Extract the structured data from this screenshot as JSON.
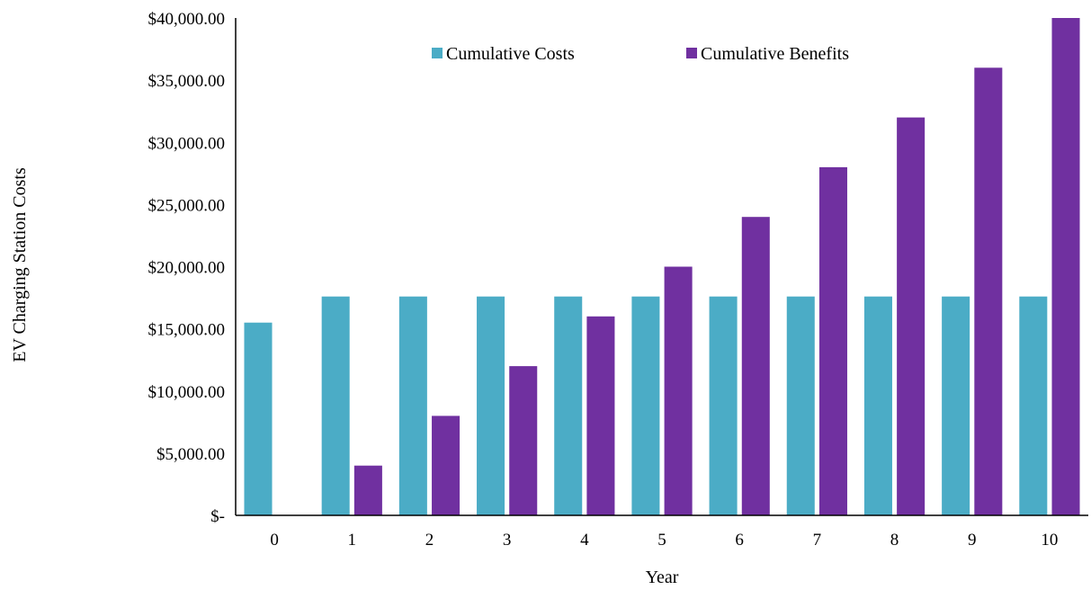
{
  "chart_data": {
    "type": "bar",
    "title": "",
    "xlabel": "Year",
    "ylabel": "EV Charging Station  Costs",
    "categories": [
      "0",
      "1",
      "2",
      "3",
      "4",
      "5",
      "6",
      "7",
      "8",
      "9",
      "10"
    ],
    "series": [
      {
        "name": "Cumulative Costs",
        "color": "#4BACC6",
        "values": [
          15500,
          17600,
          17600,
          17600,
          17600,
          17600,
          17600,
          17600,
          17600,
          17600,
          17600
        ]
      },
      {
        "name": "Cumulative Benefits",
        "color": "#7030A0",
        "values": [
          0,
          4000,
          8000,
          12000,
          16000,
          20000,
          24000,
          28000,
          32000,
          36000,
          40000
        ]
      }
    ],
    "ylim": [
      0,
      40000
    ],
    "yticks": [
      0,
      5000,
      10000,
      15000,
      20000,
      25000,
      30000,
      35000,
      40000
    ],
    "ytick_labels": [
      "$-",
      "$5,000.00",
      "$10,000.00",
      "$15,000.00",
      "$20,000.00",
      "$25,000.00",
      "$30,000.00",
      "$35,000.00",
      "$40,000.00"
    ],
    "grid": false,
    "legend_position": "top-center"
  }
}
